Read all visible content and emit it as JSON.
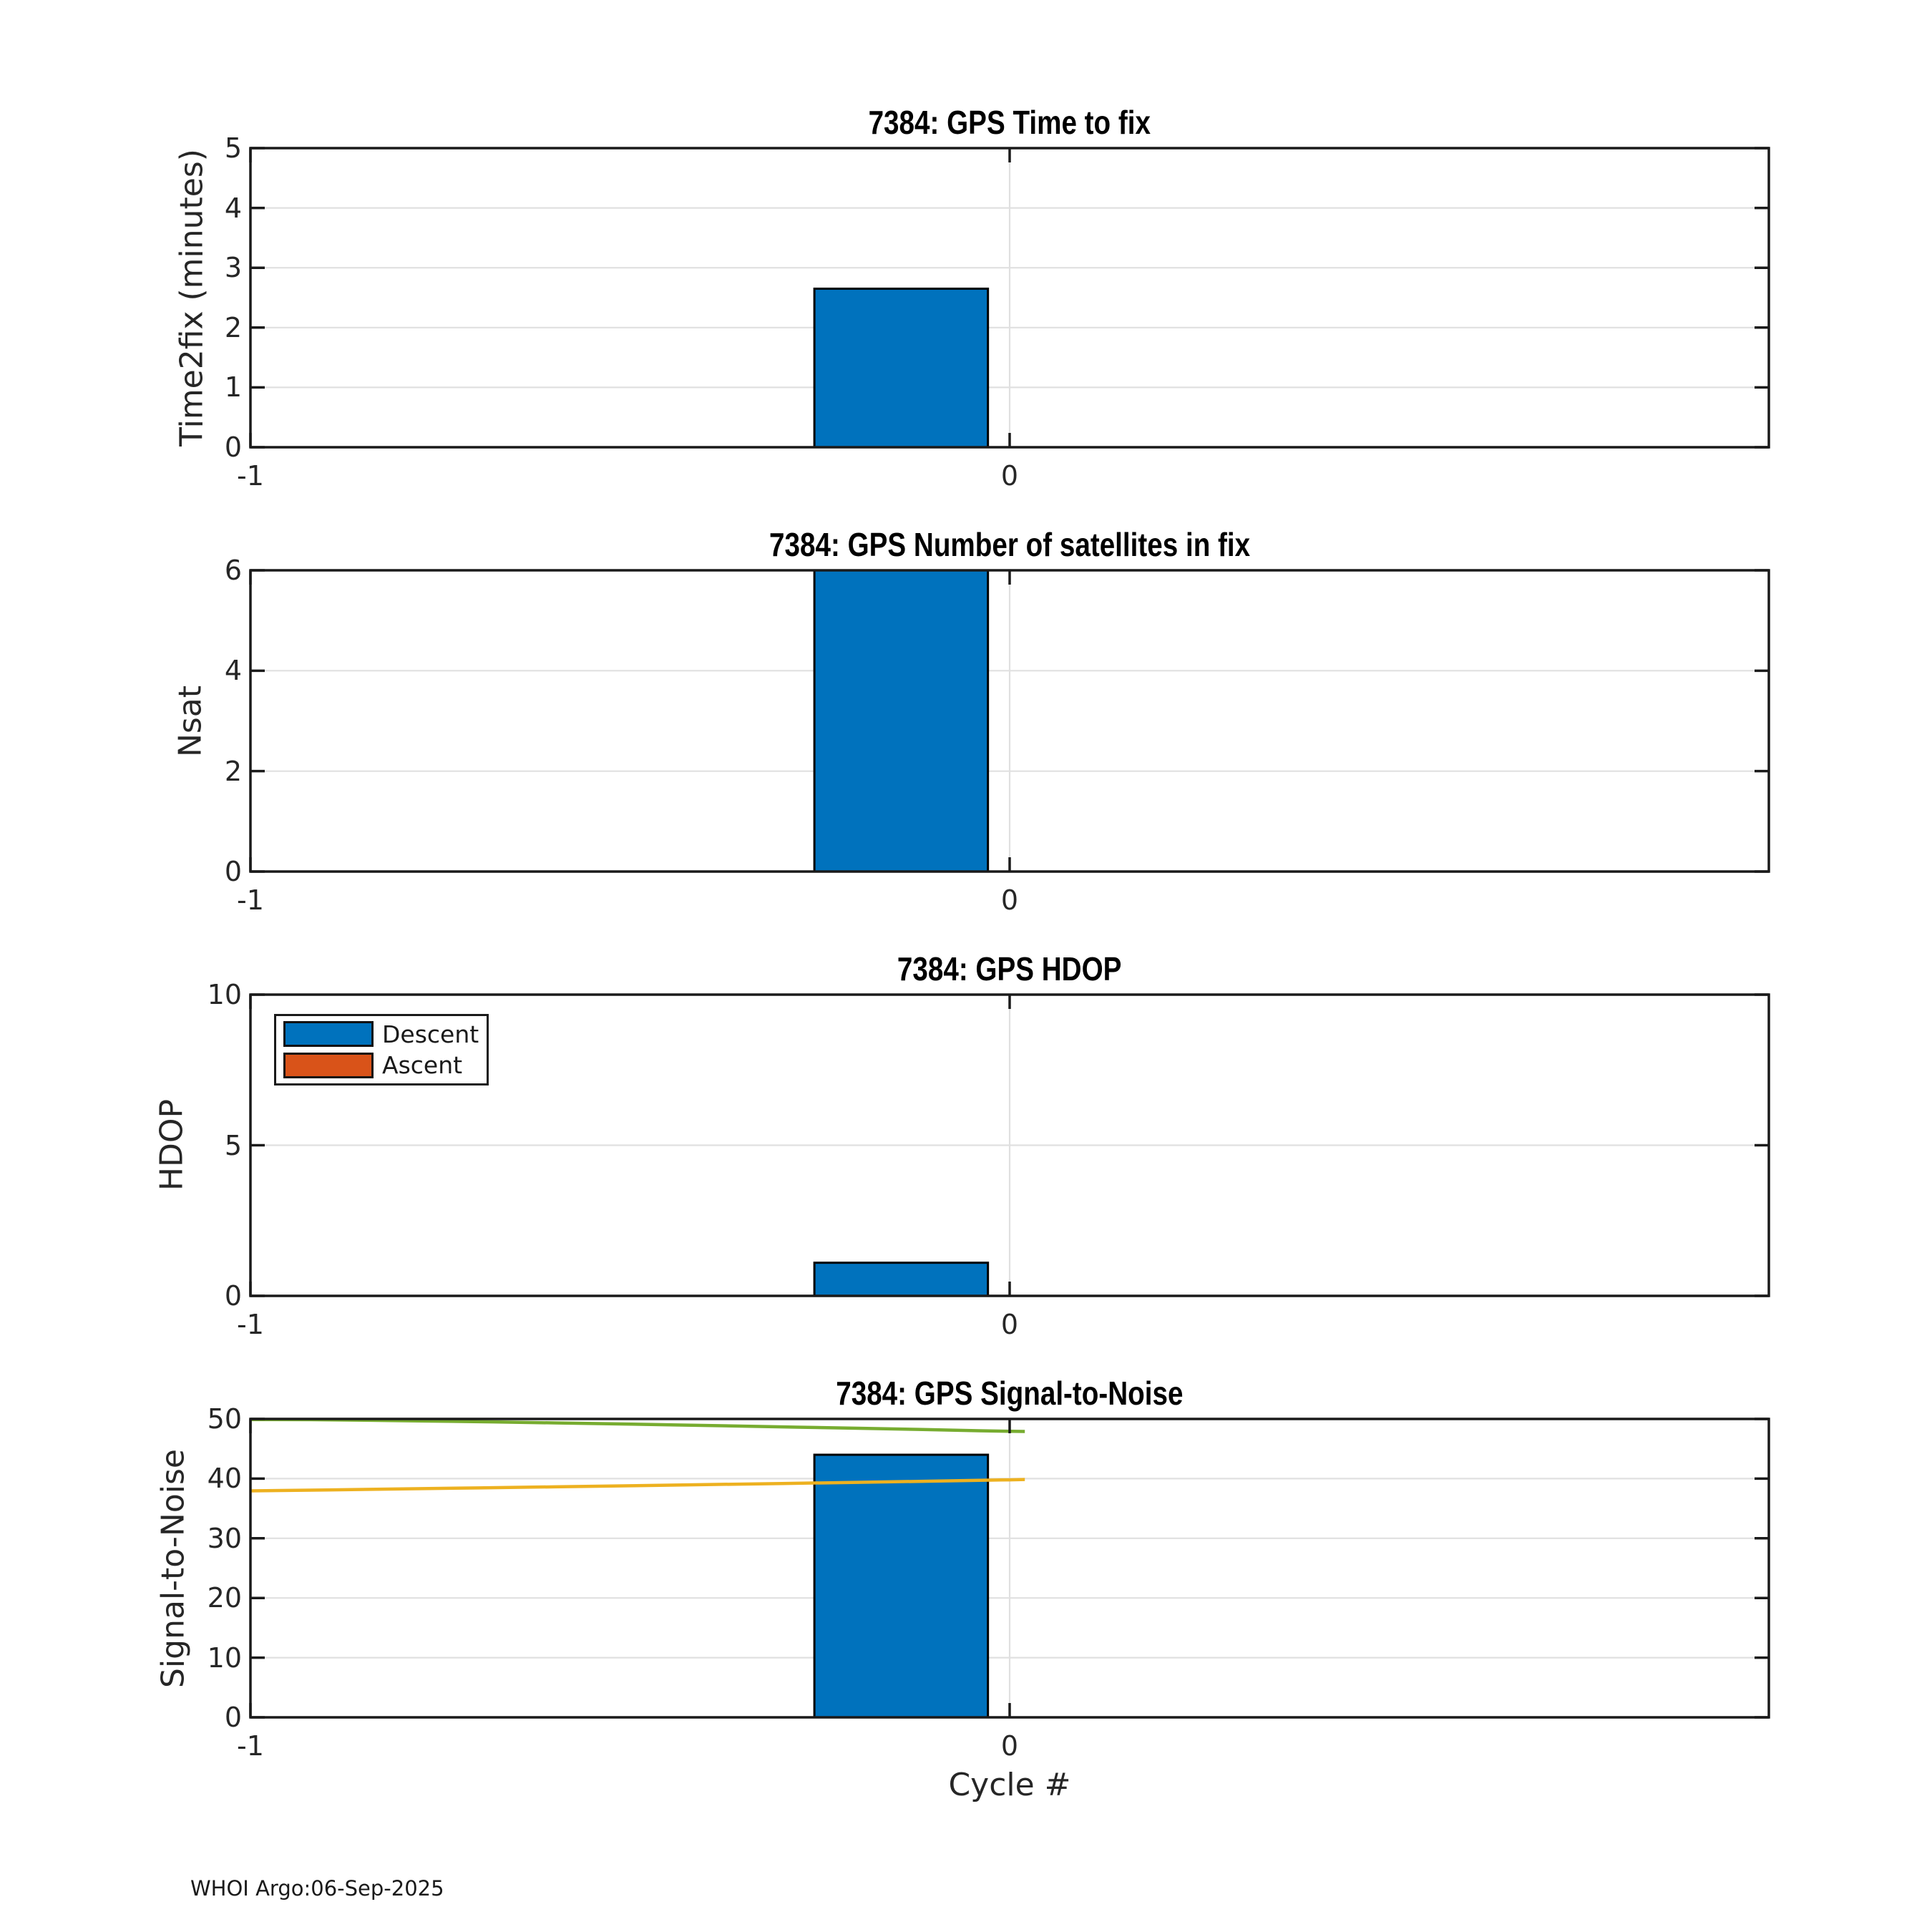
{
  "figure": {
    "footer": "WHOI Argo:06-Sep-2025",
    "xlabel": "Cycle #",
    "xlim": [
      -1,
      1
    ],
    "xticks": [
      -1,
      0
    ],
    "xtick_labels": [
      "-1",
      "0"
    ],
    "bar_offset": 0.1429,
    "bar_width": 0.2286,
    "colors": {
      "descent_blue": "#0072BD",
      "ascent_orange": "#D95319",
      "snr_upper_green": "#77AC30",
      "snr_lower_yellow": "#EDB120",
      "axis": "#1a1a1a",
      "grid": "#e0e0e0"
    },
    "legend": {
      "entries": [
        {
          "label": "Descent",
          "color": "#0072BD"
        },
        {
          "label": "Ascent",
          "color": "#D95319"
        }
      ]
    }
  },
  "chart_data": [
    {
      "type": "bar",
      "title": "7384: GPS Time to fix",
      "ylabel": "Time2fix (minutes)",
      "ylim": [
        0,
        5
      ],
      "yticks": [
        0,
        1,
        2,
        3,
        4,
        5
      ],
      "categories": [
        0
      ],
      "series": [
        {
          "name": "Descent",
          "values": [
            2.65
          ],
          "color": "#0072BD"
        },
        {
          "name": "Ascent",
          "values": [
            null
          ],
          "color": "#D95319"
        }
      ]
    },
    {
      "type": "bar",
      "title": "7384: GPS Number of satellites in fix",
      "ylabel": "Nsat",
      "ylim": [
        0,
        6
      ],
      "yticks": [
        0,
        2,
        4,
        6
      ],
      "categories": [
        0
      ],
      "series": [
        {
          "name": "Descent",
          "values": [
            6
          ],
          "color": "#0072BD"
        },
        {
          "name": "Ascent",
          "values": [
            null
          ],
          "color": "#D95319"
        }
      ]
    },
    {
      "type": "bar",
      "title": "7384: GPS HDOP",
      "ylabel": "HDOP",
      "ylim": [
        0,
        10
      ],
      "yticks": [
        0,
        5,
        10
      ],
      "categories": [
        0
      ],
      "has_legend": true,
      "series": [
        {
          "name": "Descent",
          "values": [
            1.1
          ],
          "color": "#0072BD"
        },
        {
          "name": "Ascent",
          "values": [
            null
          ],
          "color": "#D95319"
        }
      ]
    },
    {
      "type": "bar",
      "title": "7384: GPS Signal-to-Noise",
      "ylabel": "Signal-to-Noise",
      "ylim": [
        0,
        50
      ],
      "yticks": [
        0,
        10,
        20,
        30,
        40,
        50
      ],
      "categories": [
        0
      ],
      "series": [
        {
          "name": "Descent",
          "values": [
            44
          ],
          "color": "#0072BD"
        },
        {
          "name": "Ascent",
          "values": [
            null
          ],
          "color": "#D95319"
        }
      ],
      "lines": [
        {
          "name": "snr_upper_line",
          "color": "#77AC30",
          "x": [
            -1,
            -0.92,
            -0.84,
            -0.76,
            -0.68,
            -0.6,
            -0.52,
            -0.44,
            -0.36,
            -0.28,
            -0.2,
            -0.12,
            -0.04,
            0.02
          ],
          "y": [
            49.9,
            49.88,
            49.78,
            49.64,
            49.5,
            49.34,
            49.18,
            49.0,
            48.82,
            48.62,
            48.44,
            48.24,
            48.02,
            47.9
          ]
        },
        {
          "name": "snr_lower_line",
          "color": "#EDB120",
          "x": [
            -1,
            -0.9,
            -0.8,
            -0.7,
            -0.6,
            -0.5,
            -0.4,
            -0.3,
            -0.2,
            -0.1,
            0,
            0.02
          ],
          "y": [
            37.95,
            38.1,
            38.28,
            38.45,
            38.62,
            38.8,
            39.0,
            39.18,
            39.38,
            39.58,
            39.8,
            39.85
          ]
        }
      ]
    }
  ]
}
